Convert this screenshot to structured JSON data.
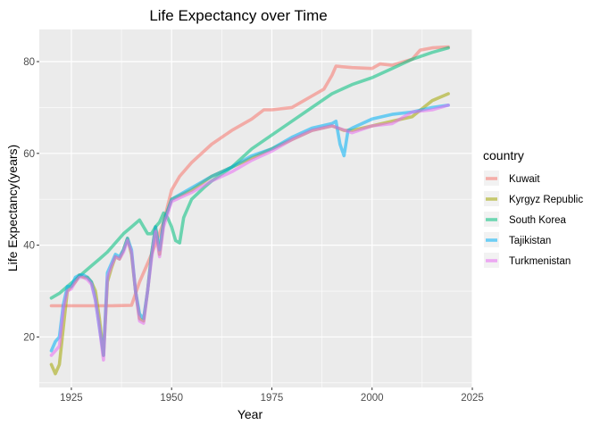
{
  "chart_data": {
    "type": "line",
    "title": "Life Expectancy over Time",
    "xlabel": "Year",
    "ylabel": "Life Expectancy(years)",
    "xlim": [
      1917,
      2025
    ],
    "ylim": [
      9,
      87
    ],
    "x_ticks": [
      1925,
      1950,
      1975,
      2000,
      2025
    ],
    "y_ticks": [
      20,
      40,
      60,
      80
    ],
    "grid": true,
    "legend_title": "country",
    "legend_position": "right",
    "series": [
      {
        "name": "Kuwait",
        "color": "#F8766D",
        "points": [
          [
            1920,
            26.8
          ],
          [
            1925,
            26.8
          ],
          [
            1930,
            26.8
          ],
          [
            1935,
            26.8
          ],
          [
            1940,
            26.9
          ],
          [
            1942,
            32
          ],
          [
            1945,
            38
          ],
          [
            1948,
            45
          ],
          [
            1950,
            52
          ],
          [
            1952,
            55
          ],
          [
            1955,
            58
          ],
          [
            1960,
            62
          ],
          [
            1965,
            65
          ],
          [
            1970,
            67.5
          ],
          [
            1973,
            69.5
          ],
          [
            1975,
            69.5
          ],
          [
            1980,
            70
          ],
          [
            1983,
            71.5
          ],
          [
            1985,
            72.5
          ],
          [
            1988,
            74
          ],
          [
            1990,
            77
          ],
          [
            1991,
            79
          ],
          [
            1995,
            78.7
          ],
          [
            2000,
            78.5
          ],
          [
            2002,
            79.5
          ],
          [
            2005,
            79.2
          ],
          [
            2008,
            80
          ],
          [
            2010,
            80.5
          ],
          [
            2012,
            82.5
          ],
          [
            2015,
            83
          ],
          [
            2019,
            83.2
          ]
        ]
      },
      {
        "name": "Kyrgyz Republic",
        "color": "#A3A500",
        "points": [
          [
            1920,
            14
          ],
          [
            1921,
            12
          ],
          [
            1922,
            14
          ],
          [
            1923,
            22
          ],
          [
            1924,
            30
          ],
          [
            1925,
            31
          ],
          [
            1926,
            32
          ],
          [
            1927,
            33.5
          ],
          [
            1928,
            33
          ],
          [
            1929,
            33
          ],
          [
            1930,
            32
          ],
          [
            1931,
            30
          ],
          [
            1932,
            24
          ],
          [
            1933,
            16
          ],
          [
            1934,
            32
          ],
          [
            1935,
            35
          ],
          [
            1936,
            37.5
          ],
          [
            1937,
            37
          ],
          [
            1938,
            39
          ],
          [
            1939,
            41.5
          ],
          [
            1940,
            38
          ],
          [
            1941,
            30
          ],
          [
            1942,
            24
          ],
          [
            1943,
            23.5
          ],
          [
            1944,
            30
          ],
          [
            1945,
            38
          ],
          [
            1946,
            44
          ],
          [
            1947,
            38
          ],
          [
            1948,
            45
          ],
          [
            1950,
            50
          ],
          [
            1955,
            52
          ],
          [
            1960,
            55
          ],
          [
            1965,
            57
          ],
          [
            1970,
            59
          ],
          [
            1975,
            61
          ],
          [
            1980,
            63
          ],
          [
            1985,
            65
          ],
          [
            1990,
            66
          ],
          [
            1993,
            65
          ],
          [
            1995,
            65
          ],
          [
            2000,
            66
          ],
          [
            2005,
            67
          ],
          [
            2010,
            68
          ],
          [
            2015,
            71.5
          ],
          [
            2019,
            73
          ]
        ]
      },
      {
        "name": "South Korea",
        "color": "#00BF7D",
        "points": [
          [
            1920,
            28.5
          ],
          [
            1922,
            29.5
          ],
          [
            1924,
            31
          ],
          [
            1926,
            32.5
          ],
          [
            1928,
            34
          ],
          [
            1930,
            35.5
          ],
          [
            1932,
            37
          ],
          [
            1934,
            38.5
          ],
          [
            1936,
            40.5
          ],
          [
            1938,
            42.5
          ],
          [
            1940,
            44
          ],
          [
            1942,
            45.5
          ],
          [
            1943,
            44
          ],
          [
            1944,
            42.5
          ],
          [
            1945,
            42.5
          ],
          [
            1946,
            44
          ],
          [
            1947,
            45
          ],
          [
            1948,
            47
          ],
          [
            1949,
            46
          ],
          [
            1950,
            44
          ],
          [
            1951,
            41
          ],
          [
            1952,
            40.5
          ],
          [
            1953,
            46
          ],
          [
            1955,
            50
          ],
          [
            1958,
            52.5
          ],
          [
            1960,
            54
          ],
          [
            1965,
            57
          ],
          [
            1970,
            61
          ],
          [
            1975,
            64
          ],
          [
            1980,
            67
          ],
          [
            1985,
            70
          ],
          [
            1990,
            73
          ],
          [
            1995,
            75
          ],
          [
            2000,
            76.5
          ],
          [
            2005,
            78.5
          ],
          [
            2010,
            80.5
          ],
          [
            2015,
            82
          ],
          [
            2019,
            83
          ]
        ]
      },
      {
        "name": "Tajikistan",
        "color": "#00B0F6",
        "points": [
          [
            1920,
            17
          ],
          [
            1921,
            19
          ],
          [
            1922,
            20
          ],
          [
            1923,
            27
          ],
          [
            1924,
            31
          ],
          [
            1925,
            31
          ],
          [
            1926,
            33
          ],
          [
            1927,
            33.5
          ],
          [
            1928,
            33.5
          ],
          [
            1929,
            33
          ],
          [
            1930,
            32
          ],
          [
            1931,
            28
          ],
          [
            1932,
            22
          ],
          [
            1933,
            16
          ],
          [
            1934,
            34
          ],
          [
            1935,
            36
          ],
          [
            1936,
            38
          ],
          [
            1937,
            37.5
          ],
          [
            1938,
            39
          ],
          [
            1939,
            41.5
          ],
          [
            1940,
            39
          ],
          [
            1941,
            30
          ],
          [
            1942,
            25
          ],
          [
            1943,
            24
          ],
          [
            1944,
            30
          ],
          [
            1945,
            38
          ],
          [
            1946,
            44
          ],
          [
            1947,
            39
          ],
          [
            1948,
            45
          ],
          [
            1950,
            50
          ],
          [
            1955,
            52.5
          ],
          [
            1960,
            55
          ],
          [
            1965,
            57
          ],
          [
            1970,
            59.5
          ],
          [
            1975,
            61
          ],
          [
            1980,
            63.5
          ],
          [
            1985,
            65.5
          ],
          [
            1990,
            66.5
          ],
          [
            1991,
            67
          ],
          [
            1992,
            62
          ],
          [
            1993,
            59.5
          ],
          [
            1994,
            65
          ],
          [
            1995,
            65.5
          ],
          [
            2000,
            67.5
          ],
          [
            2005,
            68.5
          ],
          [
            2010,
            69
          ],
          [
            2015,
            70
          ],
          [
            2019,
            70.5
          ]
        ]
      },
      {
        "name": "Turkmenistan",
        "color": "#E76BF3",
        "points": [
          [
            1920,
            16
          ],
          [
            1921,
            17
          ],
          [
            1922,
            18
          ],
          [
            1923,
            26
          ],
          [
            1924,
            30
          ],
          [
            1925,
            30.5
          ],
          [
            1926,
            32
          ],
          [
            1927,
            33
          ],
          [
            1928,
            33
          ],
          [
            1929,
            32.5
          ],
          [
            1930,
            31.5
          ],
          [
            1931,
            28
          ],
          [
            1932,
            22
          ],
          [
            1933,
            15
          ],
          [
            1934,
            33
          ],
          [
            1935,
            35.5
          ],
          [
            1936,
            37.5
          ],
          [
            1937,
            37
          ],
          [
            1938,
            38.5
          ],
          [
            1939,
            41
          ],
          [
            1940,
            38.5
          ],
          [
            1941,
            30
          ],
          [
            1942,
            23.5
          ],
          [
            1943,
            23
          ],
          [
            1944,
            30
          ],
          [
            1945,
            37
          ],
          [
            1946,
            43
          ],
          [
            1947,
            37.5
          ],
          [
            1948,
            44
          ],
          [
            1950,
            49.5
          ],
          [
            1955,
            51.5
          ],
          [
            1960,
            54
          ],
          [
            1965,
            56
          ],
          [
            1970,
            58.5
          ],
          [
            1975,
            60.5
          ],
          [
            1980,
            63
          ],
          [
            1985,
            65
          ],
          [
            1990,
            66
          ],
          [
            1995,
            64.5
          ],
          [
            2000,
            66
          ],
          [
            2005,
            66.5
          ],
          [
            2008,
            68
          ],
          [
            2010,
            69
          ],
          [
            2015,
            69.5
          ],
          [
            2019,
            70.5
          ]
        ]
      }
    ]
  }
}
